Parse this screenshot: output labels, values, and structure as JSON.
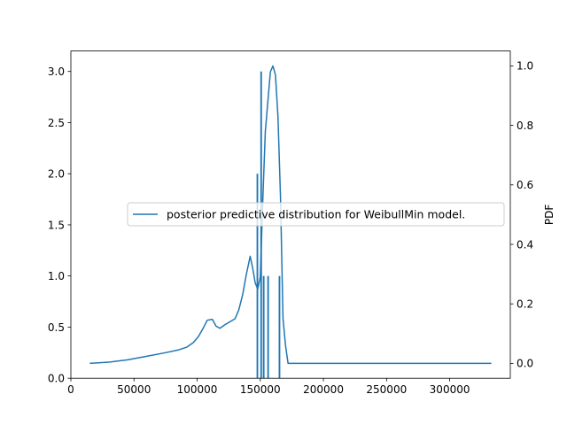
{
  "chart_data": {
    "type": "line",
    "title": "",
    "xlabel": "",
    "ylabel_left": "",
    "ylabel_right": "PDF",
    "xlim": [
      0,
      348000
    ],
    "ylim_left": [
      0,
      3.2
    ],
    "ylim_right": [
      -0.05,
      1.05
    ],
    "x_ticks": [
      0,
      50000,
      100000,
      150000,
      200000,
      250000,
      300000
    ],
    "x_tick_labels": [
      "0",
      "50000",
      "100000",
      "150000",
      "200000",
      "250000",
      "300000"
    ],
    "y_ticks_left": [
      0.0,
      0.5,
      1.0,
      1.5,
      2.0,
      2.5,
      3.0
    ],
    "y_tick_labels_left": [
      "0.0",
      "0.5",
      "1.0",
      "1.5",
      "2.0",
      "2.5",
      "3.0"
    ],
    "y_ticks_right": [
      0.0,
      0.2,
      0.4,
      0.6,
      0.8,
      1.0
    ],
    "y_tick_labels_right": [
      "0.0",
      "0.2",
      "0.4",
      "0.6",
      "0.8",
      "1.0"
    ],
    "grid": false,
    "legend": {
      "placement": "center-right",
      "entries": [
        "posterior predictive distribution for WeibullMin model."
      ]
    },
    "line_color": "#1f77b4",
    "histogram": {
      "axis": "left",
      "bars": [
        {
          "x": 147700,
          "width": 1300,
          "height": 2
        },
        {
          "x": 150700,
          "width": 1300,
          "height": 3
        },
        {
          "x": 152700,
          "width": 1300,
          "height": 1
        },
        {
          "x": 156200,
          "width": 1300,
          "height": 1
        },
        {
          "x": 165200,
          "width": 1300,
          "height": 1
        }
      ]
    },
    "series": [
      {
        "name": "posterior predictive distribution for WeibullMin model.",
        "axis": "right",
        "x": [
          15000,
          30000,
          45000,
          60000,
          75000,
          85000,
          92000,
          97000,
          101000,
          105000,
          108000,
          112000,
          115000,
          118000,
          122000,
          126000,
          130000,
          133000,
          136000,
          139000,
          142000,
          144000,
          146000,
          148000,
          150000,
          152000,
          154000,
          156000,
          158000,
          160000,
          162000,
          164000,
          166000,
          168000,
          170000,
          172000,
          180000,
          220000,
          260000,
          300000,
          333000
        ],
        "values": [
          0.0,
          0.004,
          0.012,
          0.024,
          0.036,
          0.045,
          0.055,
          0.07,
          0.09,
          0.12,
          0.145,
          0.148,
          0.125,
          0.118,
          0.13,
          0.14,
          0.15,
          0.18,
          0.23,
          0.3,
          0.36,
          0.32,
          0.27,
          0.25,
          0.29,
          0.55,
          0.78,
          0.88,
          0.98,
          1.0,
          0.97,
          0.83,
          0.56,
          0.15,
          0.06,
          0.0,
          0.0,
          0.0,
          0.0,
          0.0,
          0.0
        ]
      }
    ]
  }
}
